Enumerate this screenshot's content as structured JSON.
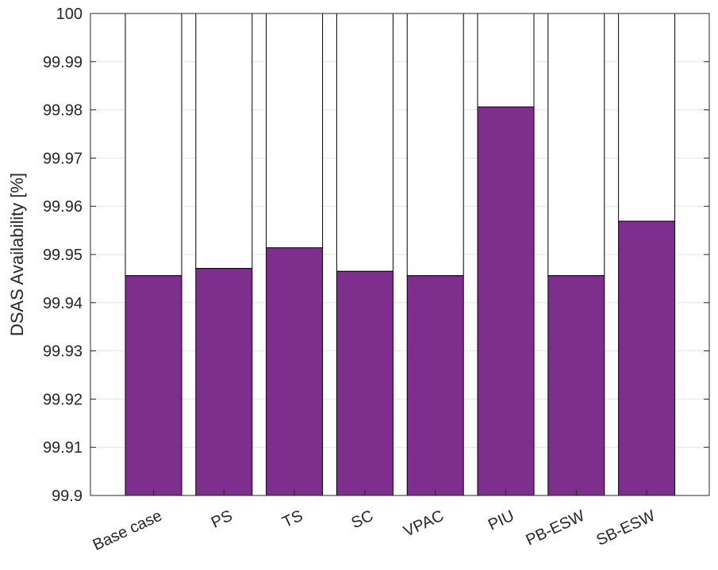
{
  "chart_data": {
    "type": "bar",
    "title": "",
    "xlabel": "",
    "ylabel": "DSAS Availability [%]",
    "ylim": [
      99.9,
      100
    ],
    "yticks": [
      "99.9",
      "99.91",
      "99.92",
      "99.93",
      "99.94",
      "99.95",
      "99.96",
      "99.97",
      "99.98",
      "99.99",
      "100"
    ],
    "categories": [
      "Base case",
      "PS",
      "TS",
      "SC",
      "VPAC",
      "PIU",
      "PB-ESW",
      "SB-ESW"
    ],
    "values": [
      99.9456,
      99.9471,
      99.9514,
      99.9465,
      99.9456,
      99.9806,
      99.9456,
      99.9569
    ],
    "stacked_remainder_to": 100,
    "bar_color": "#7e2f8e",
    "remainder_color": "#ffffff",
    "grid": true
  }
}
